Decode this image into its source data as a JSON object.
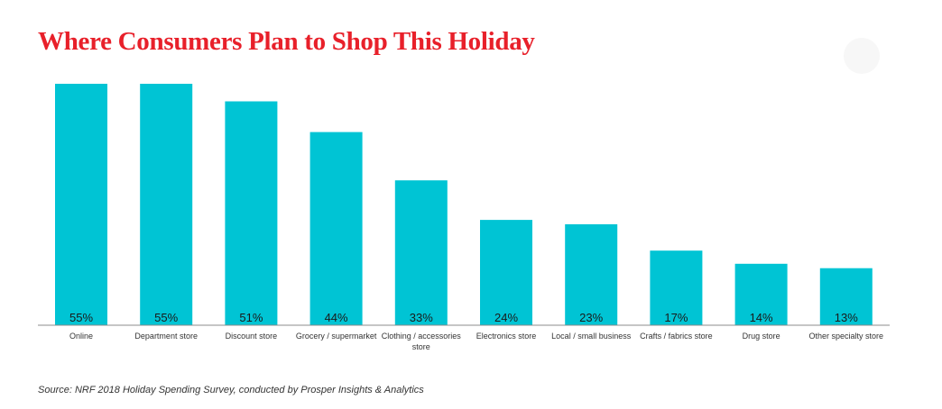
{
  "chart_data": {
    "type": "bar",
    "title": "Where Consumers Plan to Shop This Holiday",
    "categories": [
      "Online",
      "Department store",
      "Discount store",
      "Grocery / supermarket",
      "Clothing / accessories store",
      "Electronics store",
      "Local / small business",
      "Crafts / fabrics store",
      "Drug store",
      "Other specialty store"
    ],
    "category_lines": [
      [
        "Online"
      ],
      [
        "Department store"
      ],
      [
        "Discount store"
      ],
      [
        "Grocery / supermarket"
      ],
      [
        "Clothing / accessories",
        "store"
      ],
      [
        "Electronics store"
      ],
      [
        "Local / small business"
      ],
      [
        "Crafts / fabrics store"
      ],
      [
        "Drug store"
      ],
      [
        "Other specialty store"
      ]
    ],
    "values": [
      55,
      55,
      51,
      44,
      33,
      24,
      23,
      17,
      14,
      13
    ],
    "value_labels": [
      "55%",
      "55%",
      "51%",
      "44%",
      "33%",
      "24%",
      "23%",
      "17%",
      "14%",
      "13%"
    ],
    "xlabel": "",
    "ylabel": "",
    "ylim": [
      0,
      55
    ],
    "grid": false,
    "legend": "none",
    "bar_color": "#00c4d4",
    "title_color": "#e8202a",
    "source": "Source: NRF 2018 Holiday Spending Survey, conducted by Prosper Insights & Analytics"
  }
}
